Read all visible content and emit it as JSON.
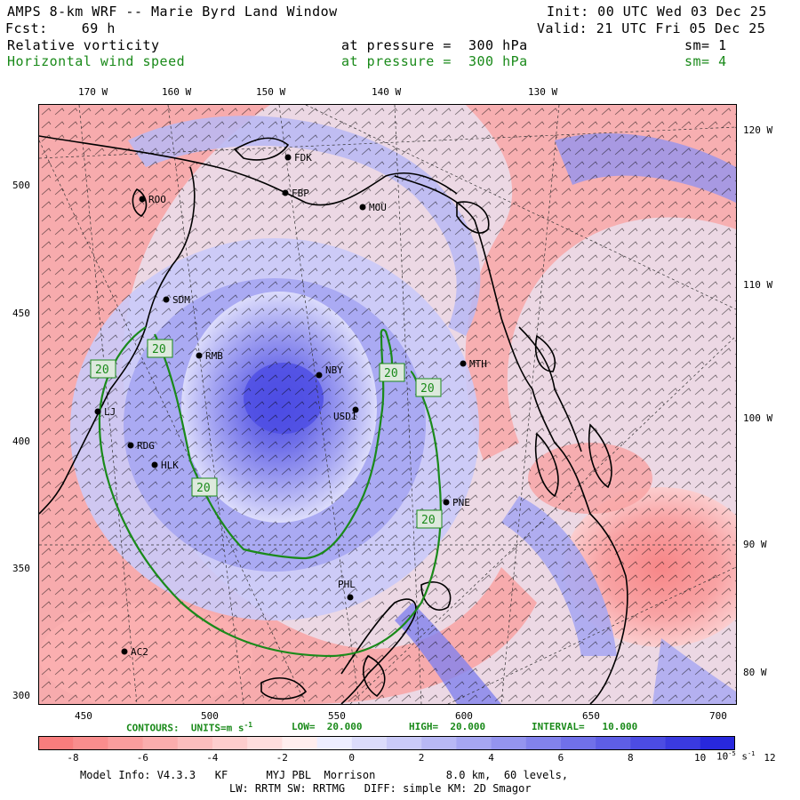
{
  "header": {
    "title": "AMPS 8-km WRF -- Marie Byrd Land Window",
    "init": "Init: 00 UTC Wed 03 Dec 25",
    "forecast": "Fcst:    69 h",
    "valid": "Valid: 21 UTC Fri 05 Dec 25",
    "field1": {
      "name": "Relative vorticity",
      "pressure": "at pressure =  300 hPa",
      "sm": "sm= 1"
    },
    "field2": {
      "name": "Horizontal wind speed",
      "pressure": "at pressure =  300 hPa",
      "sm": "sm= 4"
    }
  },
  "axes": {
    "top_lon": [
      "170 W",
      "160 W",
      "150 W",
      "140 W",
      "130 W"
    ],
    "right_lon": [
      "120 W",
      "110 W",
      "100 W",
      "90 W",
      "80 W"
    ],
    "left_y": [
      "500",
      "450",
      "400",
      "350",
      "300"
    ],
    "bottom_x": [
      "450",
      "500",
      "550",
      "600",
      "650",
      "700"
    ]
  },
  "stations": [
    {
      "code": "FDK"
    },
    {
      "code": "FBP"
    },
    {
      "code": "MOU"
    },
    {
      "code": "ROO"
    },
    {
      "code": "SDM"
    },
    {
      "code": "RMB"
    },
    {
      "code": "NBY"
    },
    {
      "code": "MTH"
    },
    {
      "code": "USD1"
    },
    {
      "code": "RDG"
    },
    {
      "code": "HLK"
    },
    {
      "code": "PNE"
    },
    {
      "code": "PHL"
    },
    {
      "code": "AC2"
    },
    {
      "code": "LJ"
    }
  ],
  "contour_labels": [
    "20",
    "20",
    "20",
    "20",
    "20",
    "20"
  ],
  "contours_info": {
    "label": "CONTOURS:  UNITS=m s",
    "units_exp": "-1",
    "low": "LOW=  20.000",
    "high": "HIGH=  20.000",
    "interval": "INTERVAL=   10.000"
  },
  "colorbar": {
    "ticks": [
      "-8",
      "-6",
      "-4",
      "-2",
      "0",
      "2",
      "4",
      "6",
      "8",
      "10",
      "12",
      "10",
      "s"
    ],
    "unit_base": "10",
    "unit_exp": "-5",
    "unit_s": "s",
    "unit_s_exp": "-1",
    "colors": [
      "#f87d7d",
      "#f98d8d",
      "#fa9d9d",
      "#fbadad",
      "#fcbdbd",
      "#fdcdcd",
      "#fedddd",
      "#ffeeee",
      "#eeeeff",
      "#dcdcfb",
      "#cacaf8",
      "#b8b8f5",
      "#a6a6f2",
      "#9494ef",
      "#8282ec",
      "#7070e9",
      "#5e5ee6",
      "#4c4ce3",
      "#3a3ae0",
      "#2828dd"
    ]
  },
  "footer": {
    "line1": "Model Info: V4.3.3   KF      MYJ PBL  Morrison           8.0 km,  60 levels,",
    "line2": "LW: RRTM SW: RRTMG   DIFF: simple KM: 2D Smagor"
  }
}
